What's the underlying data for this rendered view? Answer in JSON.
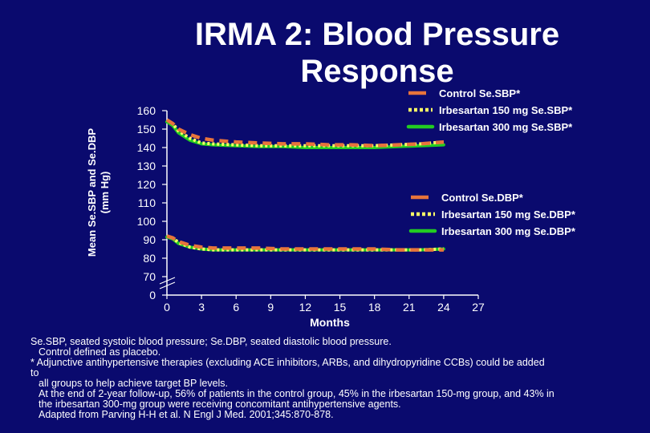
{
  "slide": {
    "title_line1": "IRMA 2: Blood Pressure",
    "title_line2": "Response"
  },
  "chart_data": {
    "type": "line",
    "xlabel": "Months",
    "ylabel_line1": "Mean Se.SBP and Se.DBP",
    "ylabel_line2": "(mm Hg)",
    "x_ticks": [
      0,
      3,
      6,
      9,
      12,
      15,
      18,
      21,
      24,
      27
    ],
    "y_ticks": [
      0,
      70,
      80,
      90,
      100,
      110,
      120,
      130,
      140,
      150,
      160
    ],
    "xlim": [
      0,
      27
    ],
    "ylim": [
      70,
      160
    ],
    "axis_break": true,
    "grid": false,
    "legend_sbp": "top-right",
    "legend_dbp": "right",
    "series": [
      {
        "name": "Control Se.SBP*",
        "color": "#e8743b",
        "style": "dash",
        "x": [
          0,
          0.5,
          1,
          2,
          3,
          4,
          6,
          8,
          10,
          12,
          14,
          16,
          18,
          20,
          22,
          24
        ],
        "y": [
          155,
          153,
          150,
          147,
          145,
          144,
          143,
          142.5,
          142,
          142,
          141.5,
          141.5,
          141,
          141.5,
          142,
          143
        ]
      },
      {
        "name": "Irbesartan 150 mg Se.SBP*",
        "color": "#ffff66",
        "style": "dot",
        "x": [
          0,
          0.5,
          1,
          2,
          3,
          4,
          6,
          8,
          10,
          12,
          14,
          16,
          18,
          20,
          22,
          24
        ],
        "y": [
          155,
          153,
          149,
          145,
          142.5,
          142,
          141.5,
          141,
          141,
          141,
          141,
          141,
          141,
          141.5,
          142,
          143
        ]
      },
      {
        "name": "Irbesartan 300 mg Se.SBP*",
        "color": "#22cc22",
        "style": "solid",
        "x": [
          0,
          0.5,
          1,
          2,
          3,
          4,
          6,
          8,
          10,
          12,
          14,
          16,
          18,
          20,
          22,
          24
        ],
        "y": [
          154,
          152,
          148,
          144,
          142,
          141.5,
          141,
          140.5,
          140.5,
          140,
          140,
          140,
          140,
          140.5,
          141,
          141.5
        ]
      },
      {
        "name": "Control Se.DBP*",
        "color": "#e8743b",
        "style": "dash",
        "x": [
          0,
          0.5,
          1,
          2,
          3,
          4,
          6,
          8,
          10,
          12,
          14,
          16,
          18,
          20,
          22,
          24
        ],
        "y": [
          92,
          91,
          89,
          87,
          86,
          85.5,
          85.5,
          85.5,
          85,
          85,
          85,
          85,
          85,
          84.5,
          84.5,
          84.5
        ]
      },
      {
        "name": "Irbesartan 150 mg Se.DBP*",
        "color": "#ffff66",
        "style": "dot",
        "x": [
          0,
          0.5,
          1,
          2,
          3,
          4,
          6,
          8,
          10,
          12,
          14,
          16,
          18,
          20,
          22,
          24
        ],
        "y": [
          92,
          91,
          88.5,
          86,
          85,
          84.5,
          84.5,
          84.5,
          84.5,
          84.5,
          84.5,
          84.5,
          84.5,
          84.5,
          84.5,
          85
        ]
      },
      {
        "name": "Irbesartan 300 mg Se.DBP*",
        "color": "#22cc22",
        "style": "solid",
        "x": [
          0,
          0.5,
          1,
          2,
          3,
          4,
          6,
          8,
          10,
          12,
          14,
          16,
          18,
          20,
          22,
          24
        ],
        "y": [
          91.5,
          90.5,
          88,
          86,
          85,
          84.5,
          84.5,
          84.5,
          84.5,
          84.5,
          84.5,
          84.5,
          84.5,
          84.5,
          84.5,
          85
        ]
      }
    ]
  },
  "notes": {
    "line1": "Se.SBP, seated systolic blood pressure; Se.DBP, seated diastolic blood pressure.",
    "line2": "Control defined as placebo.",
    "line3": "* Adjunctive antihypertensive therapies (excluding ACE inhibitors, ARBs, and dihydropyridine CCBs) could be added",
    "line4": "to",
    "line5": "all groups to help achieve target BP levels.",
    "line6": "At the end of 2-year follow-up, 56% of patients in the control group, 45% in the irbesartan 150-mg group, and 43% in",
    "line7": "the irbesartan 300-mg group were receiving concomitant antihypertensive agents.",
    "line8": "Adapted from Parving H-H et al. N Engl J Med. 2001;345:870-878."
  }
}
